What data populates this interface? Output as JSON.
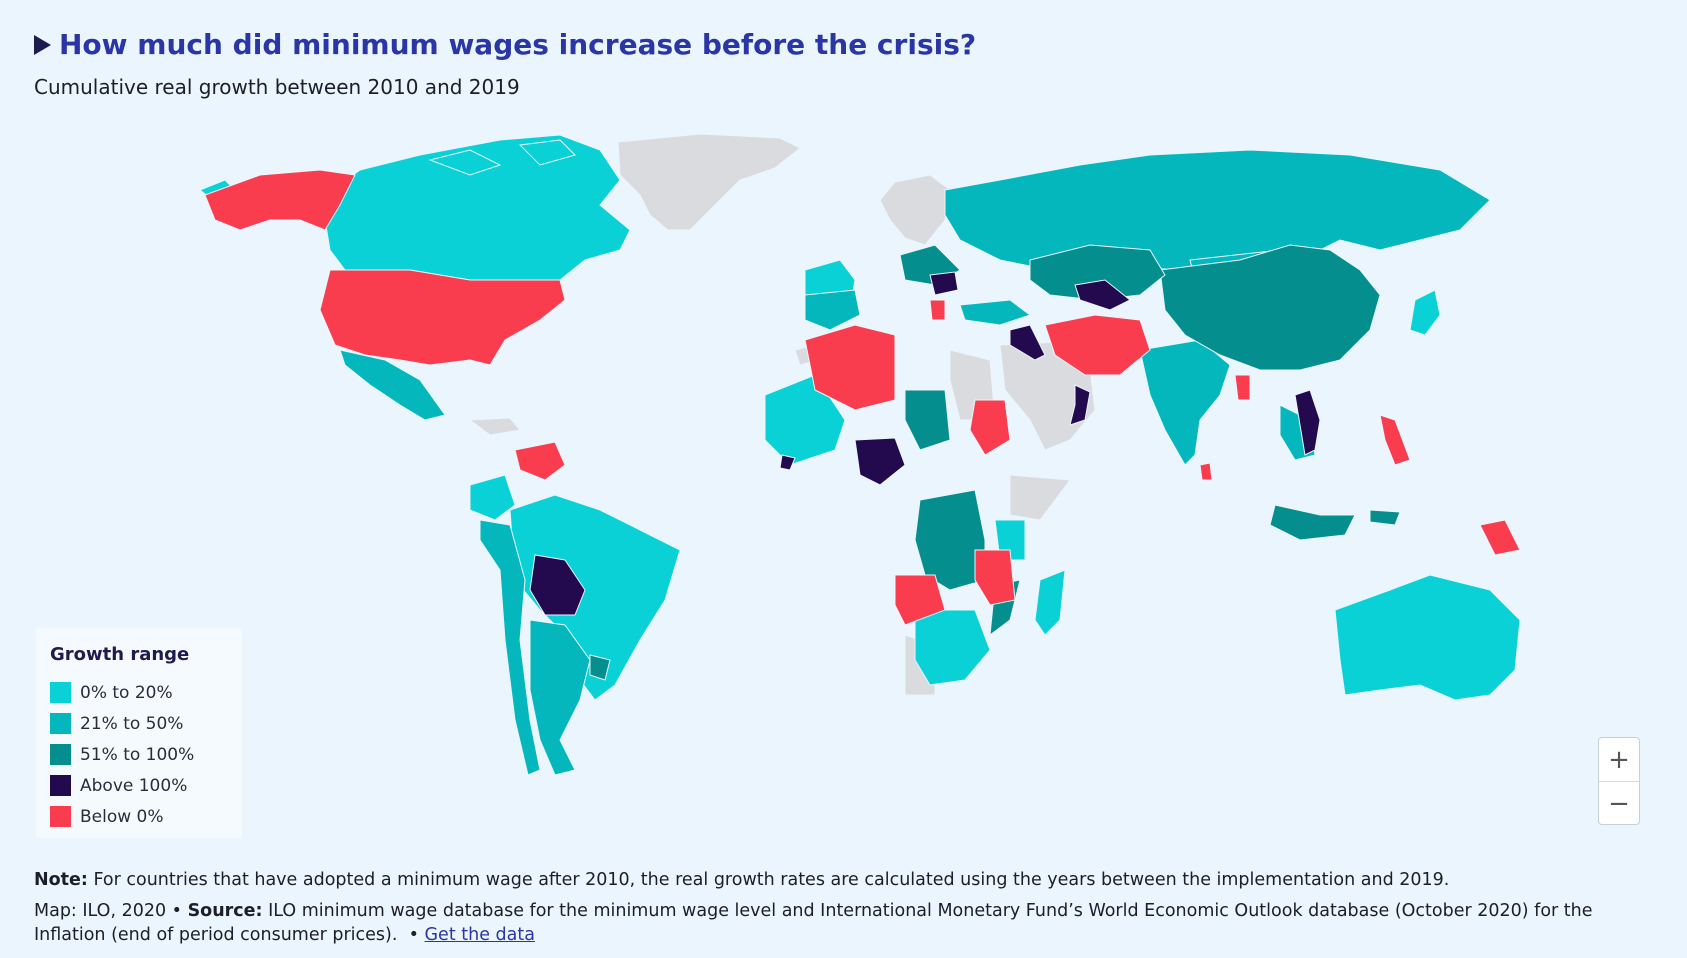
{
  "header": {
    "title": "How much did minimum wages increase before the crisis?",
    "subtitle": "Cumulative real growth between 2010 and 2019"
  },
  "legend": {
    "title": "Growth range",
    "items": [
      {
        "label": "0% to 20%",
        "color": "#0ad1d6"
      },
      {
        "label": "21% to 50%",
        "color": "#04b7bd"
      },
      {
        "label": "51% to 100%",
        "color": "#048e8e"
      },
      {
        "label": "Above 100%",
        "color": "#230a4f"
      },
      {
        "label": "Below 0%",
        "color": "#fa3d4e"
      }
    ]
  },
  "colors": {
    "no_data": "#d9dbde",
    "background": "#eaf5fd",
    "title": "#2a35a6"
  },
  "zoom": {
    "in_label": "+",
    "out_label": "−"
  },
  "footer": {
    "note_label": "Note:",
    "note_text": "For countries that have adopted a minimum wage after 2010, the real growth rates are calculated using the years between the implementation and 2019.",
    "map_credit": "Map: ILO, 2020 •",
    "source_label": "Source:",
    "source_text": "ILO minimum wage database for the minimum wage level and International Monetary Fund’s World Economic Outlook database (October 2020) for the Inflation (end of period consumer prices).",
    "separator": "•",
    "data_link": "Get the data"
  }
}
